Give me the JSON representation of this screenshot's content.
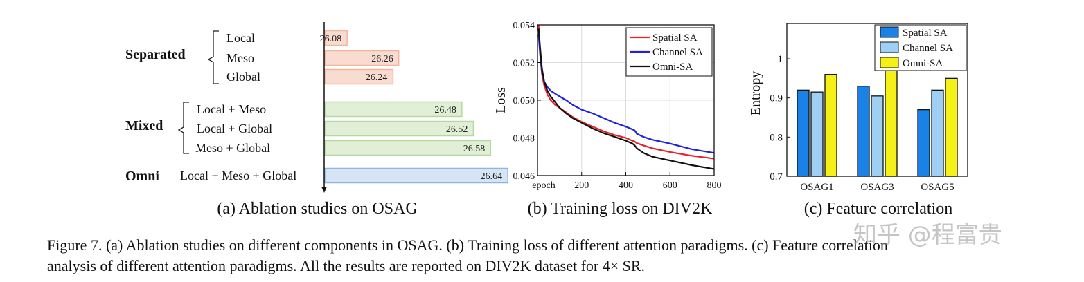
{
  "chart_data": [
    {
      "type": "bar",
      "subtitle": "(a) Ablation studies on OSAG",
      "groups": [
        {
          "name": "Separated",
          "color": "#f8dcd0",
          "stroke": "#f3b59e",
          "items": [
            {
              "label": "Local",
              "value": 26.08
            },
            {
              "label": "Meso",
              "value": 26.26
            },
            {
              "label": "Global",
              "value": 26.24
            }
          ]
        },
        {
          "name": "Mixed",
          "color": "#e0efd6",
          "stroke": "#b5d7a1",
          "items": [
            {
              "label": "Local + Meso",
              "value": 26.48
            },
            {
              "label": "Local + Global",
              "value": 26.52
            },
            {
              "label": "Meso + Global",
              "value": 26.58
            }
          ]
        },
        {
          "name": "Omni",
          "color": "#d6e5f6",
          "stroke": "#8fb4e0",
          "items": [
            {
              "label": "Local + Meso + Global",
              "value": 26.64
            }
          ]
        }
      ],
      "xlim": [
        26.0,
        26.7
      ]
    },
    {
      "type": "line",
      "subtitle": "(b) Training loss on DIV2K",
      "xlabel": "epoch",
      "ylabel": "Loss",
      "xlim": [
        0,
        800
      ],
      "ylim": [
        0.046,
        0.054
      ],
      "xticks": [
        200,
        400,
        600,
        800
      ],
      "yticks": [
        0.046,
        0.048,
        0.05,
        0.052,
        0.054
      ],
      "ytick_labels": [
        "0.046",
        "0.048",
        "0.050",
        "0.052",
        "0.054"
      ],
      "grid": true,
      "legend_position": "top-right",
      "series": [
        {
          "name": "Spatial SA",
          "color": "#e8202a",
          "x": [
            5,
            12,
            20,
            30,
            45,
            60,
            80,
            100,
            130,
            160,
            200,
            250,
            300,
            350,
            400,
            430,
            440,
            450,
            480,
            520,
            600,
            700,
            800
          ],
          "y": [
            0.054,
            0.0525,
            0.0514,
            0.0508,
            0.0503,
            0.05,
            0.04975,
            0.0496,
            0.04935,
            0.0491,
            0.04885,
            0.0486,
            0.04835,
            0.04815,
            0.048,
            0.04785,
            0.0478,
            0.04772,
            0.0476,
            0.04745,
            0.04725,
            0.04705,
            0.0469
          ]
        },
        {
          "name": "Channel SA",
          "color": "#2020e0",
          "x": [
            5,
            12,
            20,
            30,
            45,
            60,
            80,
            100,
            130,
            160,
            200,
            250,
            300,
            350,
            400,
            430,
            440,
            450,
            480,
            520,
            600,
            700,
            800
          ],
          "y": [
            0.0535,
            0.0524,
            0.0515,
            0.051,
            0.0507,
            0.0505,
            0.05035,
            0.0502,
            0.05,
            0.04975,
            0.0495,
            0.0493,
            0.04905,
            0.0488,
            0.0486,
            0.04845,
            0.0484,
            0.04822,
            0.04805,
            0.0479,
            0.0477,
            0.0474,
            0.0472
          ]
        },
        {
          "name": "Omni-SA",
          "color": "#111111",
          "x": [
            5,
            12,
            20,
            30,
            45,
            60,
            80,
            100,
            130,
            160,
            200,
            250,
            300,
            350,
            400,
            430,
            440,
            450,
            480,
            520,
            600,
            700,
            800
          ],
          "y": [
            0.0538,
            0.0528,
            0.0517,
            0.051,
            0.0505,
            0.0502,
            0.0499,
            0.0496,
            0.0493,
            0.04905,
            0.0488,
            0.0485,
            0.04825,
            0.04805,
            0.04785,
            0.0477,
            0.0476,
            0.04745,
            0.0472,
            0.047,
            0.0468,
            0.04655,
            0.04635
          ]
        }
      ]
    },
    {
      "type": "bar",
      "subtitle": "(c) Feature correlation",
      "ylabel": "Entropy",
      "categories": [
        "OSAG1",
        "OSAG3",
        "OSAG5"
      ],
      "ylim": [
        0.7,
        1.09
      ],
      "yticks": [
        0.7,
        0.8,
        0.9,
        1.0
      ],
      "ytick_labels": [
        "0.7",
        "0.8",
        "0.9",
        "1"
      ],
      "legend_position": "top-right",
      "series": [
        {
          "name": "Spatial SA",
          "color": "#1a82e6",
          "values": [
            0.92,
            0.93,
            0.87
          ]
        },
        {
          "name": "Channel  SA",
          "color": "#9fd0f4",
          "values": [
            0.915,
            0.905,
            0.92
          ]
        },
        {
          "name": "Omni-SA",
          "color": "#f5f016",
          "values": [
            0.96,
            0.97,
            0.95
          ]
        }
      ]
    }
  ],
  "caption": {
    "line1": "Figure 7. (a) Ablation studies on different components in OSAG. (b) Training loss of different attention paradigms. (c) Feature correlation",
    "line2": "analysis of different attention paradigms. All the results are reported on DIV2K dataset for 4× SR."
  },
  "watermark": "知乎 @程富贵"
}
